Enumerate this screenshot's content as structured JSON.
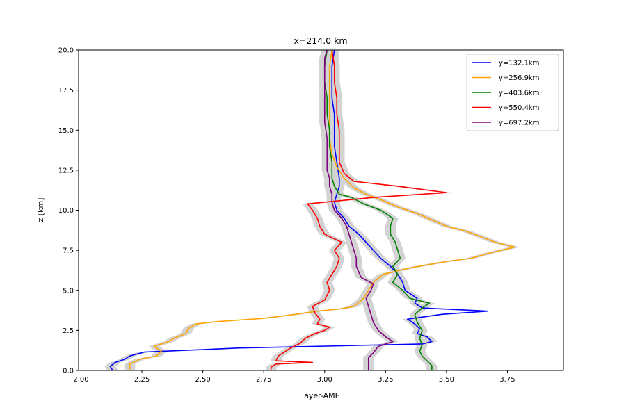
{
  "chart_data": {
    "type": "line",
    "title": "x=214.0 km",
    "xlabel": "layer-AMF",
    "ylabel": "z [km]",
    "xlim": [
      1.99,
      3.98
    ],
    "ylim": [
      0,
      20
    ],
    "xticks": [
      "2.00",
      "2.25",
      "2.50",
      "2.75",
      "3.00",
      "3.25",
      "3.50",
      "3.75"
    ],
    "yticks": [
      "0.0",
      "2.5",
      "5.0",
      "7.5",
      "10.0",
      "12.5",
      "15.0",
      "17.5",
      "20.0"
    ],
    "grid": false,
    "legend_position": "top-right",
    "uncertainty_band_color": "#d3d3d3",
    "series": [
      {
        "name": "y=132.1km",
        "color": "#0000ff",
        "points": [
          [
            2.13,
            0.0
          ],
          [
            2.12,
            0.25
          ],
          [
            2.14,
            0.5
          ],
          [
            2.18,
            0.7
          ],
          [
            2.2,
            0.9
          ],
          [
            2.26,
            1.15
          ],
          [
            2.5,
            1.3
          ],
          [
            2.65,
            1.4
          ],
          [
            3.4,
            1.65
          ],
          [
            3.44,
            1.8
          ],
          [
            3.42,
            2.1
          ],
          [
            3.38,
            2.3
          ],
          [
            3.39,
            2.6
          ],
          [
            3.37,
            2.9
          ],
          [
            3.34,
            3.2
          ],
          [
            3.48,
            3.5
          ],
          [
            3.67,
            3.7
          ],
          [
            3.4,
            3.9
          ],
          [
            3.37,
            4.2
          ],
          [
            3.38,
            4.5
          ],
          [
            3.33,
            5.0
          ],
          [
            3.32,
            5.5
          ],
          [
            3.3,
            6.0
          ],
          [
            3.27,
            6.5
          ],
          [
            3.23,
            7.0
          ],
          [
            3.2,
            7.5
          ],
          [
            3.17,
            8.0
          ],
          [
            3.14,
            8.5
          ],
          [
            3.1,
            9.0
          ],
          [
            3.08,
            9.5
          ],
          [
            3.05,
            10.0
          ],
          [
            3.04,
            10.5
          ],
          [
            3.05,
            11.0
          ],
          [
            3.06,
            11.5
          ],
          [
            3.06,
            12.0
          ],
          [
            3.05,
            13.0
          ],
          [
            3.04,
            14.0
          ],
          [
            3.04,
            15.0
          ],
          [
            3.04,
            16.0
          ],
          [
            3.03,
            17.0
          ],
          [
            3.03,
            18.0
          ],
          [
            3.03,
            19.0
          ],
          [
            3.04,
            20.0
          ]
        ]
      },
      {
        "name": "y=256.9km",
        "color": "#ffa500",
        "points": [
          [
            2.2,
            0.0
          ],
          [
            2.2,
            0.4
          ],
          [
            2.24,
            0.7
          ],
          [
            2.31,
            0.9
          ],
          [
            2.33,
            1.2
          ],
          [
            2.3,
            1.5
          ],
          [
            2.36,
            1.8
          ],
          [
            2.38,
            2.0
          ],
          [
            2.43,
            2.3
          ],
          [
            2.44,
            2.6
          ],
          [
            2.47,
            2.9
          ],
          [
            2.56,
            3.05
          ],
          [
            2.75,
            3.25
          ],
          [
            2.88,
            3.5
          ],
          [
            2.97,
            3.7
          ],
          [
            3.07,
            3.85
          ],
          [
            3.12,
            4.0
          ],
          [
            3.16,
            4.5
          ],
          [
            3.18,
            5.0
          ],
          [
            3.2,
            5.5
          ],
          [
            3.24,
            6.0
          ],
          [
            3.35,
            6.4
          ],
          [
            3.5,
            6.8
          ],
          [
            3.6,
            7.0
          ],
          [
            3.67,
            7.3
          ],
          [
            3.78,
            7.7
          ],
          [
            3.7,
            8.0
          ],
          [
            3.65,
            8.3
          ],
          [
            3.58,
            8.7
          ],
          [
            3.5,
            9.0
          ],
          [
            3.44,
            9.4
          ],
          [
            3.38,
            9.8
          ],
          [
            3.3,
            10.2
          ],
          [
            3.24,
            10.6
          ],
          [
            3.17,
            11.0
          ],
          [
            3.12,
            11.4
          ],
          [
            3.08,
            12.0
          ],
          [
            3.05,
            12.7
          ],
          [
            3.03,
            13.5
          ],
          [
            3.02,
            14.5
          ],
          [
            3.02,
            16.0
          ],
          [
            3.02,
            17.0
          ],
          [
            3.02,
            18.0
          ],
          [
            3.02,
            19.0
          ],
          [
            3.03,
            20.0
          ]
        ]
      },
      {
        "name": "y=403.6km",
        "color": "#008000",
        "points": [
          [
            3.44,
            0.0
          ],
          [
            3.44,
            0.3
          ],
          [
            3.42,
            0.6
          ],
          [
            3.4,
            0.9
          ],
          [
            3.39,
            1.2
          ],
          [
            3.4,
            1.6
          ],
          [
            3.39,
            2.0
          ],
          [
            3.4,
            2.5
          ],
          [
            3.38,
            3.0
          ],
          [
            3.37,
            3.5
          ],
          [
            3.4,
            3.9
          ],
          [
            3.43,
            4.2
          ],
          [
            3.35,
            4.5
          ],
          [
            3.32,
            5.0
          ],
          [
            3.28,
            5.5
          ],
          [
            3.3,
            6.0
          ],
          [
            3.28,
            6.5
          ],
          [
            3.31,
            7.0
          ],
          [
            3.3,
            7.5
          ],
          [
            3.29,
            8.0
          ],
          [
            3.27,
            8.5
          ],
          [
            3.27,
            9.0
          ],
          [
            3.28,
            9.5
          ],
          [
            3.23,
            10.0
          ],
          [
            3.16,
            10.4
          ],
          [
            3.11,
            10.8
          ],
          [
            3.06,
            11.0
          ],
          [
            3.04,
            11.5
          ],
          [
            3.03,
            12.0
          ],
          [
            3.03,
            13.0
          ],
          [
            3.02,
            14.0
          ],
          [
            3.02,
            15.0
          ],
          [
            3.01,
            16.0
          ],
          [
            3.01,
            17.0
          ],
          [
            3.0,
            18.0
          ],
          [
            3.0,
            19.0
          ],
          [
            3.01,
            20.0
          ]
        ]
      },
      {
        "name": "y=550.4km",
        "color": "#ff0000",
        "points": [
          [
            2.78,
            0.0
          ],
          [
            2.78,
            0.2
          ],
          [
            2.8,
            0.4
          ],
          [
            2.95,
            0.5
          ],
          [
            2.8,
            0.6
          ],
          [
            2.81,
            0.9
          ],
          [
            2.83,
            1.1
          ],
          [
            2.86,
            1.4
          ],
          [
            2.9,
            1.7
          ],
          [
            2.92,
            2.0
          ],
          [
            2.96,
            2.3
          ],
          [
            3.0,
            2.5
          ],
          [
            3.02,
            2.7
          ],
          [
            2.97,
            2.9
          ],
          [
            2.98,
            3.2
          ],
          [
            2.96,
            3.6
          ],
          [
            2.95,
            4.0
          ],
          [
            3.0,
            4.4
          ],
          [
            3.02,
            5.0
          ],
          [
            3.01,
            5.5
          ],
          [
            3.03,
            6.0
          ],
          [
            3.05,
            6.5
          ],
          [
            3.06,
            7.0
          ],
          [
            3.04,
            7.5
          ],
          [
            3.07,
            8.0
          ],
          [
            3.0,
            8.5
          ],
          [
            2.98,
            9.0
          ],
          [
            2.97,
            9.5
          ],
          [
            2.95,
            10.0
          ],
          [
            2.93,
            10.4
          ],
          [
            3.2,
            10.8
          ],
          [
            3.5,
            11.1
          ],
          [
            3.3,
            11.5
          ],
          [
            3.12,
            11.8
          ],
          [
            3.08,
            12.3
          ],
          [
            3.06,
            13.0
          ],
          [
            3.06,
            14.0
          ],
          [
            3.06,
            15.0
          ],
          [
            3.05,
            16.0
          ],
          [
            3.05,
            17.0
          ],
          [
            3.04,
            18.0
          ],
          [
            3.04,
            19.0
          ],
          [
            3.03,
            20.0
          ]
        ]
      },
      {
        "name": "y=697.2km",
        "color": "#800080",
        "points": [
          [
            3.18,
            0.0
          ],
          [
            3.18,
            0.4
          ],
          [
            3.18,
            0.8
          ],
          [
            3.2,
            1.1
          ],
          [
            3.22,
            1.5
          ],
          [
            3.28,
            1.8
          ],
          [
            3.25,
            2.1
          ],
          [
            3.22,
            2.5
          ],
          [
            3.2,
            3.0
          ],
          [
            3.19,
            3.5
          ],
          [
            3.18,
            4.0
          ],
          [
            3.17,
            4.5
          ],
          [
            3.19,
            5.0
          ],
          [
            3.2,
            5.4
          ],
          [
            3.15,
            5.8
          ],
          [
            3.13,
            6.5
          ],
          [
            3.13,
            7.0
          ],
          [
            3.12,
            7.5
          ],
          [
            3.11,
            8.0
          ],
          [
            3.1,
            8.5
          ],
          [
            3.09,
            9.0
          ],
          [
            3.07,
            9.5
          ],
          [
            3.04,
            10.0
          ],
          [
            3.03,
            10.5
          ],
          [
            3.03,
            11.0
          ],
          [
            3.02,
            11.5
          ],
          [
            3.02,
            12.0
          ],
          [
            3.01,
            12.5
          ],
          [
            3.01,
            13.5
          ],
          [
            3.01,
            14.5
          ],
          [
            3.0,
            15.5
          ],
          [
            3.0,
            16.5
          ],
          [
            3.0,
            17.5
          ],
          [
            3.0,
            18.5
          ],
          [
            3.0,
            19.5
          ],
          [
            3.01,
            20.0
          ]
        ]
      }
    ]
  }
}
